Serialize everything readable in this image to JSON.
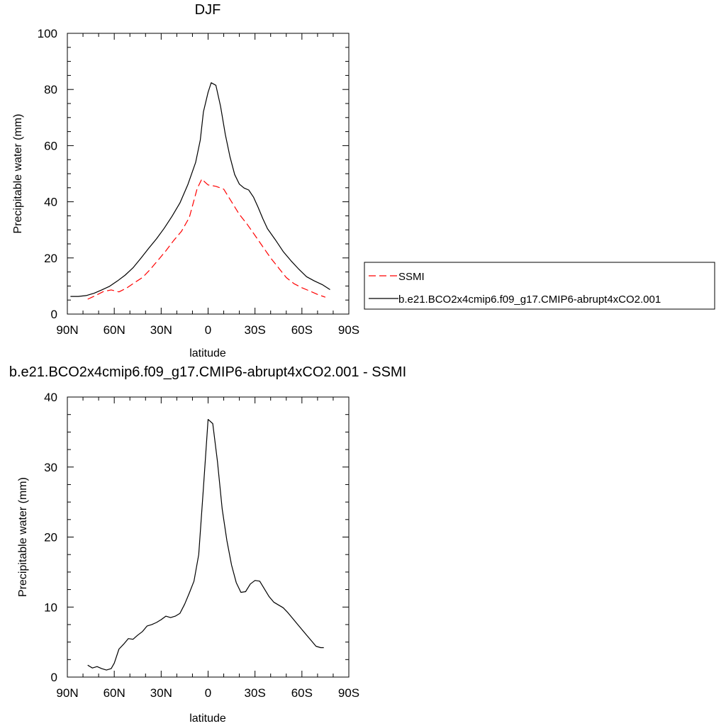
{
  "chart_data": [
    {
      "type": "line",
      "title": "DJF",
      "xlabel": "latitude",
      "ylabel": "Precipitable water (mm)",
      "xlim": [
        -90,
        90
      ],
      "ylim": [
        0,
        100
      ],
      "xticks": [
        -90,
        -60,
        -30,
        0,
        30,
        60,
        90
      ],
      "xtick_labels": [
        "90N",
        "60N",
        "30N",
        "0",
        "30S",
        "60S",
        "90S"
      ],
      "yticks": [
        0,
        20,
        40,
        60,
        80,
        100
      ],
      "ytick_labels": [
        "0",
        "20",
        "40",
        "60",
        "80",
        "100"
      ],
      "legend_position": "right",
      "series": [
        {
          "name": "SSMI",
          "color": "#ff0000",
          "style": "dashed",
          "x": [
            -77,
            -72,
            -67,
            -62,
            -57,
            -52,
            -47,
            -42,
            -37,
            -32,
            -27,
            -22,
            -17,
            -12,
            -7,
            -4,
            -2,
            0,
            5,
            10,
            15,
            20,
            25,
            30,
            35,
            40,
            45,
            50,
            55,
            60,
            65,
            70,
            75
          ],
          "y": [
            5.3,
            6.6,
            8.0,
            8.6,
            7.9,
            9.3,
            11.2,
            13.0,
            15.9,
            19.2,
            22.5,
            26.2,
            29.5,
            34.4,
            44.7,
            48.1,
            47.0,
            46.0,
            45.5,
            44.5,
            40.0,
            35.5,
            32.0,
            28.0,
            24.0,
            20.0,
            16.5,
            13.0,
            10.8,
            9.4,
            8.2,
            7.0,
            6.0
          ]
        },
        {
          "name": "b.e21.BCO2x4cmip6.f09_g17.CMIP6-abrupt4xCO2.001",
          "color": "#000000",
          "style": "solid",
          "x": [
            -88,
            -83,
            -78,
            -73,
            -68,
            -63,
            -58,
            -53,
            -48,
            -43,
            -38,
            -33,
            -28,
            -23,
            -18,
            -13,
            -8,
            -5,
            -3,
            0,
            2,
            5,
            8,
            11,
            14,
            17,
            20,
            23,
            26,
            29,
            32,
            35,
            38,
            43,
            48,
            53,
            58,
            63,
            68,
            73,
            78
          ],
          "y": [
            6.3,
            6.3,
            6.6,
            7.4,
            8.6,
            9.9,
            11.8,
            13.9,
            16.5,
            19.9,
            23.4,
            26.8,
            30.6,
            34.9,
            39.6,
            46.0,
            54.0,
            62.0,
            72.0,
            79.0,
            82.4,
            81.5,
            74.0,
            64.0,
            56.0,
            49.7,
            46.3,
            44.9,
            44.2,
            41.7,
            38.0,
            34.0,
            30.4,
            26.5,
            22.3,
            19.0,
            16.0,
            13.3,
            11.8,
            10.5,
            8.7
          ]
        }
      ]
    },
    {
      "type": "line",
      "title": "b.e21.BCO2x4cmip6.f09_g17.CMIP6-abrupt4xCO2.001 - SSMI",
      "xlabel": "latitude",
      "ylabel": "Precipitable water (mm)",
      "xlim": [
        -90,
        90
      ],
      "ylim": [
        0,
        40
      ],
      "xticks": [
        -90,
        -60,
        -30,
        0,
        30,
        60,
        90
      ],
      "xtick_labels": [
        "90N",
        "60N",
        "30N",
        "0",
        "30S",
        "60S",
        "90S"
      ],
      "yticks": [
        0,
        10,
        20,
        30,
        40
      ],
      "ytick_labels": [
        "0",
        "10",
        "20",
        "30",
        "40"
      ],
      "series": [
        {
          "color": "#000000",
          "style": "solid",
          "x": [
            -77,
            -74,
            -71,
            -68,
            -65,
            -62,
            -60,
            -57,
            -54,
            -51,
            -48,
            -45,
            -42,
            -39,
            -36,
            -33,
            -30,
            -27,
            -24,
            -21,
            -18,
            -15,
            -12,
            -9,
            -6,
            -3,
            0,
            3,
            6,
            9,
            12,
            15,
            18,
            21,
            24,
            27,
            30,
            33,
            36,
            39,
            42,
            45,
            48,
            51,
            54,
            57,
            60,
            63,
            66,
            69,
            72,
            74
          ],
          "y": [
            1.7,
            1.3,
            1.5,
            1.2,
            1.0,
            1.2,
            2.0,
            4.0,
            4.7,
            5.5,
            5.4,
            6.0,
            6.5,
            7.3,
            7.5,
            7.8,
            8.2,
            8.7,
            8.5,
            8.7,
            9.1,
            10.4,
            12.0,
            13.7,
            17.5,
            27.0,
            36.8,
            36.2,
            30.8,
            24.0,
            19.5,
            16.0,
            13.5,
            12.1,
            12.2,
            13.3,
            13.8,
            13.7,
            12.6,
            11.5,
            10.7,
            10.3,
            9.9,
            9.2,
            8.4,
            7.6,
            6.8,
            6.0,
            5.2,
            4.4,
            4.2,
            4.2
          ]
        }
      ]
    }
  ]
}
